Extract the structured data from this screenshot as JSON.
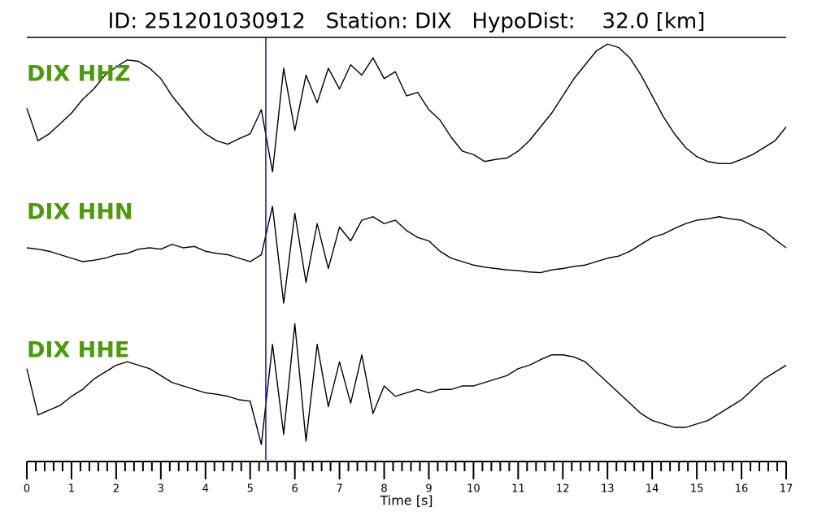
{
  "chart_data": {
    "type": "line",
    "title": "ID: 251201030912   Station: DIX   HypoDist:    32.0 [km]",
    "xlabel": "Time [s]",
    "xlim": [
      0,
      17
    ],
    "xticks": [
      0,
      1,
      2,
      3,
      4,
      5,
      6,
      7,
      8,
      9,
      10,
      11,
      12,
      13,
      14,
      15,
      16,
      17
    ],
    "xminorticks": [
      0.2,
      0.4,
      0.6,
      0.8,
      1.2,
      1.4,
      1.6,
      1.8,
      2.2,
      2.4,
      2.6,
      2.8,
      3.2,
      3.4,
      3.6,
      3.8,
      4.2,
      4.4,
      4.6,
      4.8,
      5.2,
      5.4,
      5.6,
      5.8,
      6.2,
      6.4,
      6.6,
      6.8,
      7.2,
      7.4,
      7.6,
      7.8,
      8.2,
      8.4,
      8.6,
      8.8,
      9.2,
      9.4,
      9.6,
      9.8,
      10.2,
      10.4,
      10.6,
      10.8,
      11.2,
      11.4,
      11.6,
      11.8,
      12.2,
      12.4,
      12.6,
      12.8,
      13.2,
      13.4,
      13.6,
      13.8,
      14.2,
      14.4,
      14.6,
      14.8,
      15.2,
      15.4,
      15.6,
      15.8,
      16.2,
      16.4,
      16.6,
      16.8
    ],
    "ylim": [
      -1,
      1
    ],
    "label_color": "#4a9a0a",
    "pick": {
      "x": 5.35,
      "color": "#1010d0"
    },
    "x": [
      0,
      0.25,
      0.5,
      0.75,
      1,
      1.25,
      1.5,
      1.75,
      2,
      2.25,
      2.5,
      2.75,
      3,
      3.25,
      3.5,
      3.75,
      4,
      4.25,
      4.5,
      4.75,
      5,
      5.25,
      5.5,
      5.75,
      6,
      6.25,
      6.5,
      6.75,
      7,
      7.25,
      7.5,
      7.75,
      8,
      8.25,
      8.5,
      8.75,
      9,
      9.25,
      9.5,
      9.75,
      10,
      10.25,
      10.5,
      10.75,
      11,
      11.25,
      11.5,
      11.75,
      12,
      12.25,
      12.5,
      12.75,
      13,
      13.25,
      13.5,
      13.75,
      14,
      14.25,
      14.5,
      14.75,
      15,
      15.25,
      15.5,
      15.75,
      16,
      16.25,
      16.5,
      16.75,
      17
    ],
    "series": [
      {
        "name": "DIX HHZ",
        "color": "#000000",
        "values": [
          0.02,
          -0.45,
          -0.35,
          -0.2,
          -0.05,
          0.15,
          0.3,
          0.5,
          0.62,
          0.72,
          0.7,
          0.6,
          0.45,
          0.2,
          0.0,
          -0.2,
          -0.35,
          -0.45,
          -0.5,
          -0.42,
          -0.35,
          0.0,
          -0.9,
          0.6,
          -0.3,
          0.5,
          0.1,
          0.6,
          0.3,
          0.65,
          0.5,
          0.75,
          0.45,
          0.55,
          0.2,
          0.25,
          0.0,
          -0.15,
          -0.4,
          -0.6,
          -0.65,
          -0.75,
          -0.72,
          -0.7,
          -0.6,
          -0.45,
          -0.25,
          -0.05,
          0.2,
          0.45,
          0.65,
          0.85,
          0.95,
          0.9,
          0.75,
          0.5,
          0.2,
          -0.1,
          -0.35,
          -0.55,
          -0.68,
          -0.75,
          -0.78,
          -0.78,
          -0.72,
          -0.65,
          -0.55,
          -0.45,
          -0.25
        ]
      },
      {
        "name": "DIX HHN",
        "color": "#000000",
        "values": [
          0.0,
          -0.02,
          -0.05,
          -0.1,
          -0.15,
          -0.2,
          -0.18,
          -0.15,
          -0.1,
          -0.08,
          -0.02,
          0.0,
          -0.02,
          0.05,
          0.0,
          0.02,
          -0.05,
          -0.08,
          -0.1,
          -0.15,
          -0.2,
          -0.1,
          0.6,
          -0.8,
          0.5,
          -0.5,
          0.35,
          -0.3,
          0.3,
          0.1,
          0.4,
          0.45,
          0.35,
          0.4,
          0.25,
          0.15,
          0.1,
          -0.05,
          -0.15,
          -0.2,
          -0.25,
          -0.28,
          -0.3,
          -0.32,
          -0.33,
          -0.35,
          -0.36,
          -0.32,
          -0.3,
          -0.27,
          -0.25,
          -0.2,
          -0.15,
          -0.12,
          -0.05,
          0.05,
          0.15,
          0.2,
          0.28,
          0.35,
          0.4,
          0.42,
          0.45,
          0.42,
          0.4,
          0.32,
          0.25,
          0.12,
          0.0
        ]
      },
      {
        "name": "DIX HHE",
        "color": "#000000",
        "values": [
          0.25,
          -0.42,
          -0.35,
          -0.28,
          -0.15,
          -0.05,
          0.1,
          0.2,
          0.3,
          0.35,
          0.3,
          0.25,
          0.15,
          0.05,
          0.0,
          -0.05,
          -0.1,
          -0.12,
          -0.15,
          -0.2,
          -0.22,
          -0.85,
          0.6,
          -0.7,
          0.9,
          -0.8,
          0.6,
          -0.3,
          0.35,
          -0.25,
          0.45,
          -0.4,
          0.0,
          -0.15,
          -0.1,
          -0.05,
          -0.1,
          -0.05,
          -0.05,
          0.0,
          0.0,
          0.05,
          0.1,
          0.15,
          0.25,
          0.3,
          0.38,
          0.45,
          0.45,
          0.42,
          0.35,
          0.2,
          0.05,
          -0.1,
          -0.25,
          -0.4,
          -0.5,
          -0.55,
          -0.6,
          -0.6,
          -0.55,
          -0.5,
          -0.4,
          -0.3,
          -0.2,
          -0.05,
          0.1,
          0.2,
          0.3
        ]
      }
    ]
  }
}
